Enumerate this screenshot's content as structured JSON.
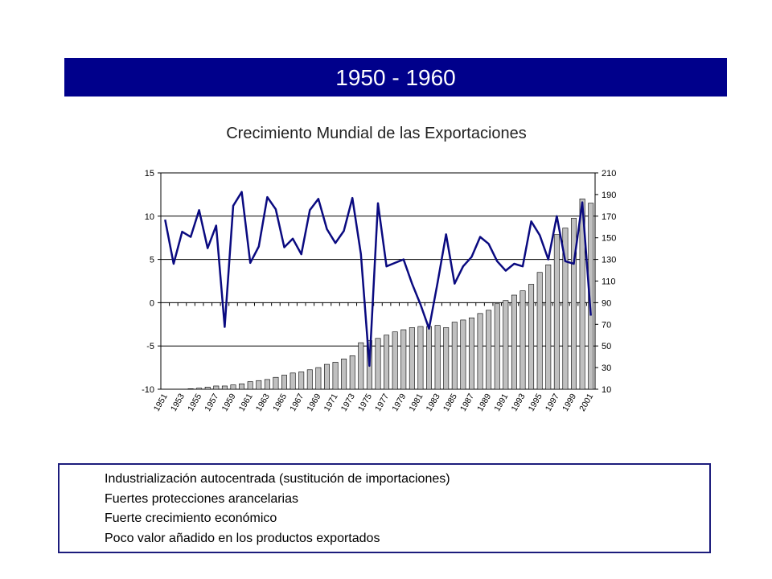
{
  "header": {
    "title": "1950 - 1960"
  },
  "chart_data": {
    "type": "bar_line",
    "title": "Crecimiento Mundial de las Exportaciones",
    "categories": [
      "1951",
      null,
      "1953",
      null,
      "1955",
      null,
      "1957",
      null,
      "1959",
      null,
      "1961",
      null,
      "1963",
      null,
      "1965",
      null,
      "1967",
      null,
      "1969",
      null,
      "1971",
      null,
      "1973",
      null,
      "1975",
      null,
      "1977",
      null,
      "1979",
      null,
      "1981",
      null,
      "1983",
      null,
      "1985",
      null,
      "1987",
      null,
      "1989",
      null,
      "1991",
      null,
      "1993",
      null,
      "1995",
      null,
      "1997",
      null,
      "1999",
      null,
      "2001"
    ],
    "series": [
      {
        "type": "bar",
        "axis": "y2",
        "color": "#c0c0c0",
        "values": [
          null,
          null,
          null,
          10.5,
          11,
          12,
          13,
          13,
          14,
          15,
          17,
          18,
          19,
          21,
          23,
          25,
          26,
          28,
          30,
          33,
          35,
          38,
          41,
          53,
          55,
          57,
          60,
          63,
          65,
          67,
          68,
          68,
          69,
          67,
          72,
          74,
          76,
          80,
          83,
          89,
          92,
          97,
          101,
          107,
          118,
          125,
          153,
          159,
          168,
          186,
          182
        ]
      },
      {
        "type": "line",
        "axis": "y",
        "color": "#0a0a80",
        "values": [
          9.6,
          4.5,
          8.2,
          7.6,
          10.7,
          6.3,
          8.9,
          -2.8,
          11.2,
          12.8,
          4.6,
          6.5,
          12.2,
          10.8,
          6.4,
          7.4,
          5.6,
          10.7,
          12.0,
          8.5,
          6.9,
          8.3,
          12.1,
          5.6,
          -7.3,
          11.5,
          4.2,
          4.6,
          5.0,
          2.2,
          -0.2,
          -3.0,
          2.3,
          7.9,
          2.2,
          4.2,
          5.3,
          7.6,
          6.8,
          4.8,
          3.7,
          4.5,
          4.2,
          9.4,
          7.8,
          5.0,
          10.0,
          4.8,
          4.5,
          11.6,
          -1.5
        ]
      }
    ],
    "ylim": [
      -10,
      15
    ],
    "yticks": [
      -10,
      -5,
      0,
      5,
      10,
      15
    ],
    "y2lim": [
      10,
      210
    ],
    "y2ticks": [
      10,
      30,
      50,
      70,
      90,
      110,
      130,
      150,
      170,
      190,
      210
    ],
    "grid": true
  },
  "notes": [
    "Industrialización autocentrada (sustitución de importaciones)",
    "Fuertes protecciones arancelarias",
    "Fuerte crecimiento económico",
    "Poco valor añadido en los productos exportados"
  ]
}
